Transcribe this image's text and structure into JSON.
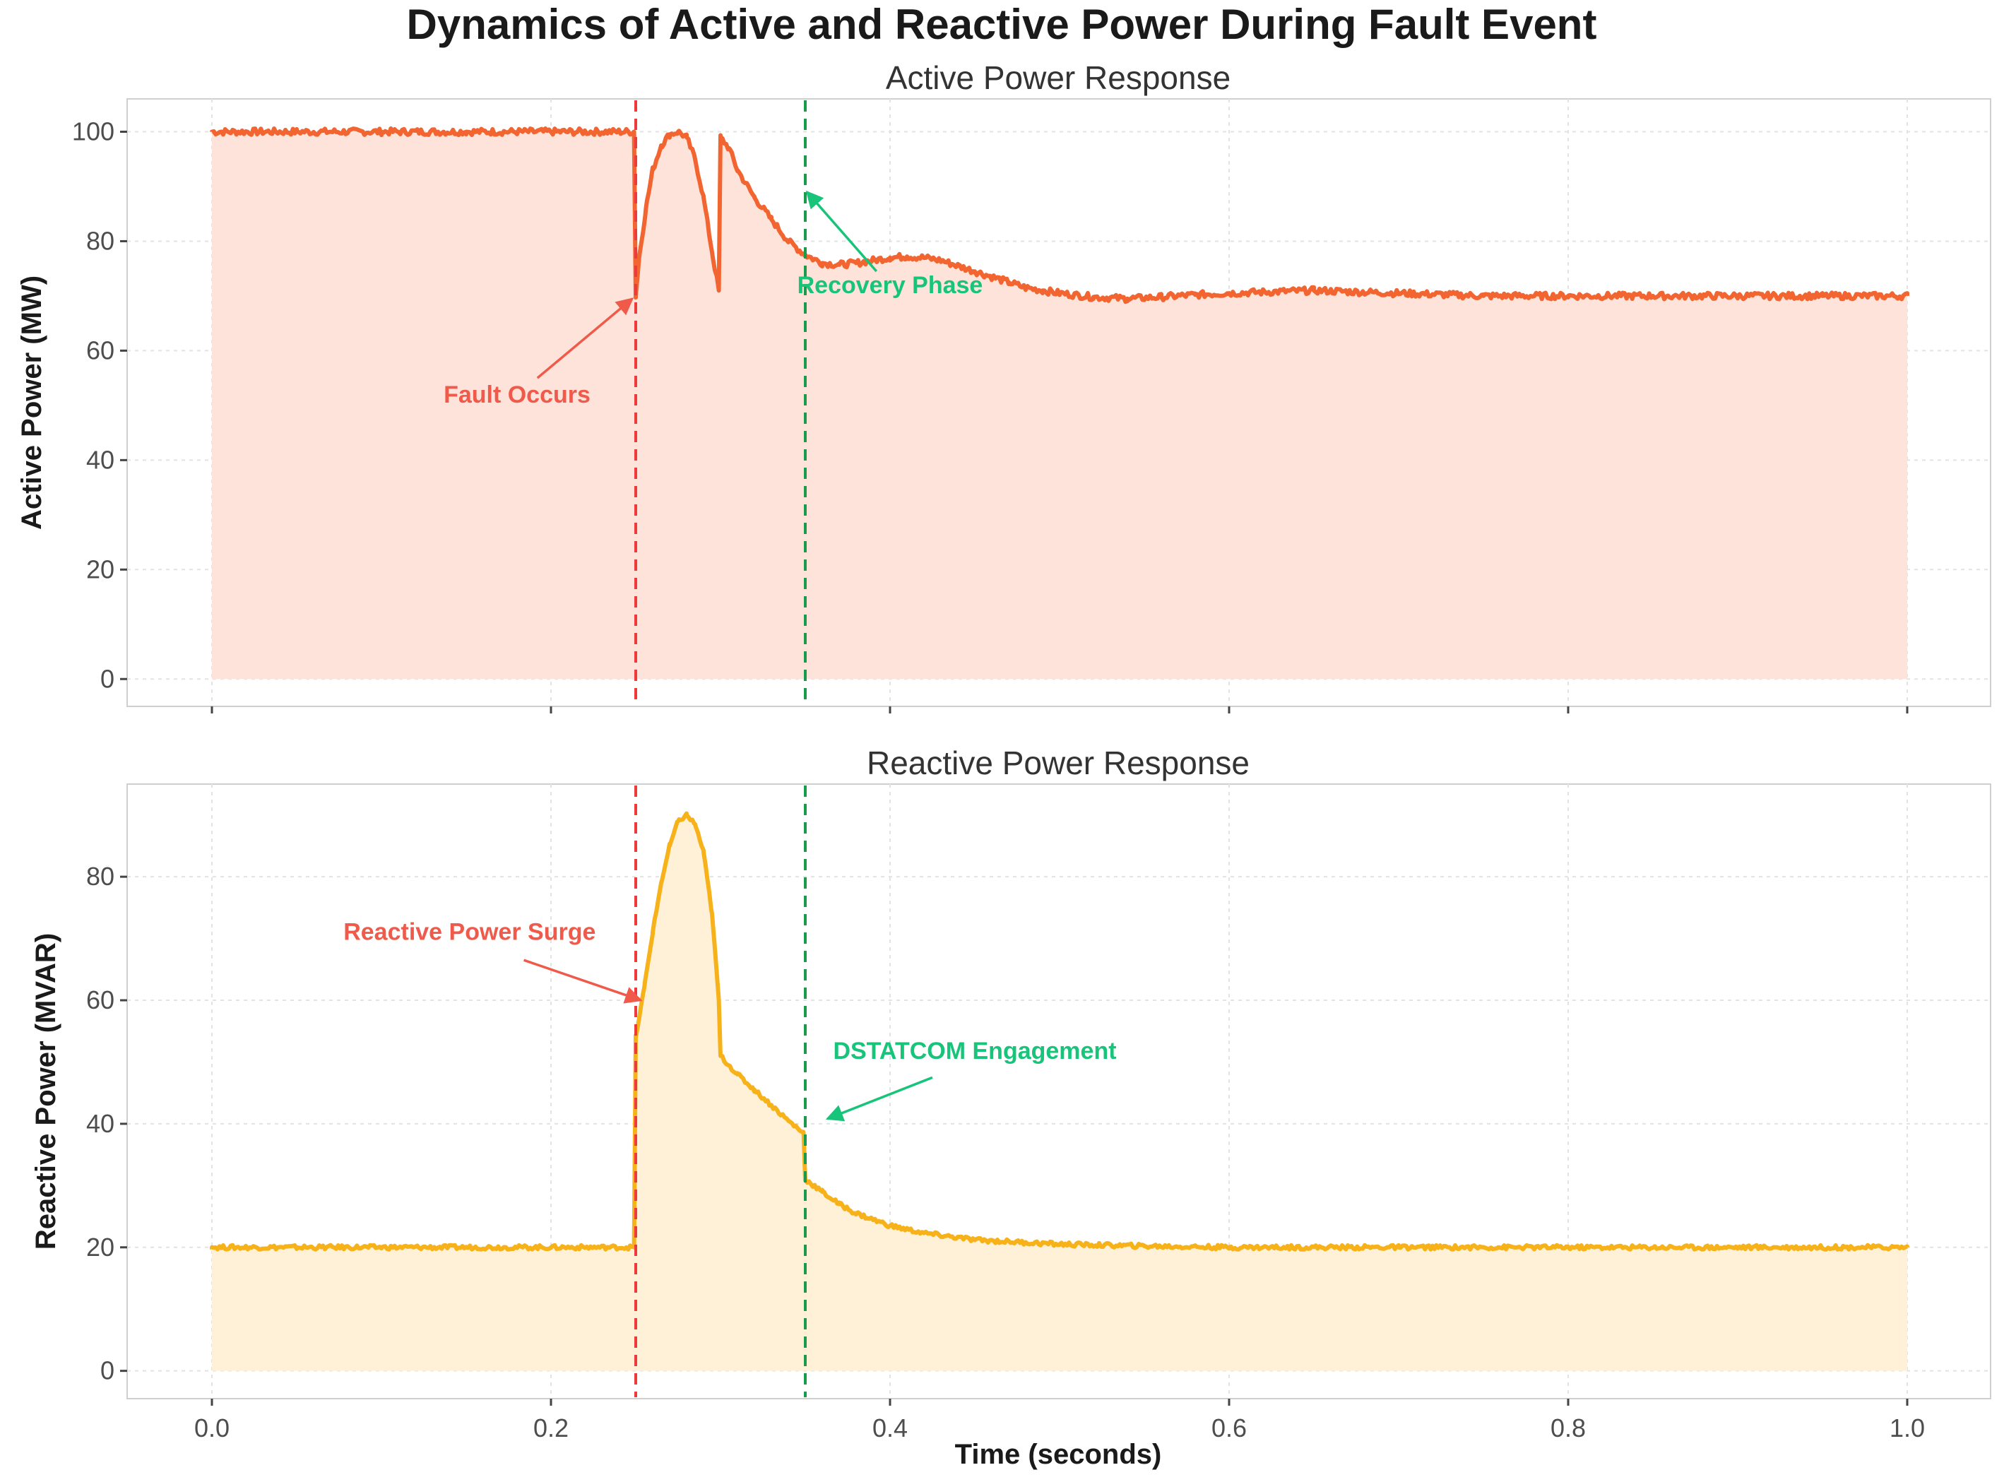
{
  "title": "Dynamics of Active and Reactive Power During Fault Event",
  "colors": {
    "active_line": "#f26530",
    "active_fill": "#fde3da",
    "reactive_line": "#f7b21a",
    "reactive_fill": "#fef1d8",
    "fault_marker": "#ee3a3a",
    "recovery_marker": "#1a9a4a",
    "annotation_red": "#f05a4a",
    "annotation_green": "#18c47a"
  },
  "chart_data": [
    {
      "type": "area",
      "title": "Active Power Response",
      "xlabel": "",
      "ylabel": "Active Power (MW)",
      "xlim": [
        0,
        1
      ],
      "ylim": [
        -5,
        106
      ],
      "xticks": [
        0.0,
        0.2,
        0.4,
        0.6,
        0.8,
        1.0
      ],
      "xtick_labels": [],
      "yticks": [
        0,
        20,
        40,
        60,
        80,
        100
      ],
      "ytick_labels": [
        "0",
        "20",
        "40",
        "60",
        "80",
        "100"
      ],
      "grid": true,
      "series": [
        {
          "x": [
            0.0,
            0.05,
            0.1,
            0.15,
            0.2,
            0.249,
            0.25,
            0.252,
            0.256,
            0.26,
            0.265,
            0.27,
            0.275,
            0.28,
            0.285,
            0.29,
            0.295,
            0.299,
            0.3,
            0.305,
            0.31,
            0.32,
            0.33,
            0.34,
            0.35,
            0.36,
            0.37,
            0.38,
            0.39,
            0.4,
            0.41,
            0.42,
            0.43,
            0.44,
            0.45,
            0.46,
            0.47,
            0.48,
            0.49,
            0.5,
            0.52,
            0.54,
            0.56,
            0.58,
            0.6,
            0.65,
            0.7,
            0.75,
            0.8,
            0.85,
            0.9,
            0.95,
            1.0
          ],
          "y": [
            100,
            100,
            100,
            100,
            100,
            100,
            70,
            77,
            86,
            93,
            97.5,
            99.5,
            100,
            99,
            95,
            88,
            78,
            71,
            99,
            97,
            93,
            88,
            84,
            80,
            77.5,
            76,
            75.7,
            76,
            76.5,
            77,
            77.2,
            77,
            76.5,
            75.5,
            74.5,
            73.5,
            72.5,
            71.5,
            71,
            70.5,
            69.8,
            69.5,
            69.8,
            70.2,
            70.5,
            71,
            70.5,
            70,
            70,
            70,
            70,
            70,
            70
          ]
        }
      ],
      "vlines": [
        {
          "x": 0.25,
          "style": "dashed",
          "color": "red"
        },
        {
          "x": 0.35,
          "style": "dashed",
          "color": "green"
        }
      ],
      "annotations": [
        {
          "text": "Fault Occurs",
          "text_x": 0.18,
          "text_y": 50.5,
          "arrow_from": [
            0.192,
            55
          ],
          "arrow_to": [
            0.248,
            69.5
          ],
          "color": "red"
        },
        {
          "text": "Recovery Phase",
          "text_x": 0.4,
          "text_y": 70.5,
          "arrow_from": [
            0.392,
            74.5
          ],
          "arrow_to": [
            0.351,
            89
          ],
          "color": "green"
        }
      ]
    },
    {
      "type": "area",
      "title": "Reactive Power Response",
      "xlabel": "Time (seconds)",
      "ylabel": "Reactive Power (MVAR)",
      "xlim": [
        0,
        1
      ],
      "ylim": [
        -4.5,
        95
      ],
      "xticks": [
        0.0,
        0.2,
        0.4,
        0.6,
        0.8,
        1.0
      ],
      "xtick_labels": [
        "0.0",
        "0.2",
        "0.4",
        "0.6",
        "0.8",
        "1.0"
      ],
      "yticks": [
        0,
        20,
        40,
        60,
        80
      ],
      "ytick_labels": [
        "0",
        "20",
        "40",
        "60",
        "80"
      ],
      "grid": true,
      "series": [
        {
          "x": [
            0.0,
            0.05,
            0.1,
            0.15,
            0.2,
            0.249,
            0.25,
            0.255,
            0.26,
            0.265,
            0.27,
            0.275,
            0.28,
            0.285,
            0.29,
            0.295,
            0.299,
            0.3,
            0.31,
            0.32,
            0.33,
            0.34,
            0.349,
            0.35,
            0.36,
            0.37,
            0.38,
            0.4,
            0.42,
            0.45,
            0.5,
            0.55,
            0.6,
            0.7,
            0.8,
            0.9,
            1.0
          ],
          "y": [
            20,
            20,
            20,
            20,
            20,
            20,
            54,
            62,
            71,
            79,
            85,
            89,
            90,
            88.5,
            84,
            74,
            60,
            51,
            48,
            45.5,
            43,
            40.5,
            38.5,
            31,
            29,
            27,
            25.5,
            23.5,
            22.3,
            21.2,
            20.5,
            20.2,
            20,
            20,
            20,
            20,
            20
          ]
        }
      ],
      "vlines": [
        {
          "x": 0.25,
          "style": "dashed",
          "color": "red"
        },
        {
          "x": 0.35,
          "style": "dashed",
          "color": "green"
        }
      ],
      "annotations": [
        {
          "text": "Reactive Power Surge",
          "text_x": 0.152,
          "text_y": 69.8,
          "arrow_from": [
            0.184,
            66.5
          ],
          "arrow_to": [
            0.253,
            60
          ],
          "color": "red"
        },
        {
          "text": "DSTATCOM Engagement",
          "text_x": 0.45,
          "text_y": 50.5,
          "arrow_from": [
            0.425,
            47.5
          ],
          "arrow_to": [
            0.363,
            40.8
          ],
          "color": "green"
        }
      ]
    }
  ]
}
